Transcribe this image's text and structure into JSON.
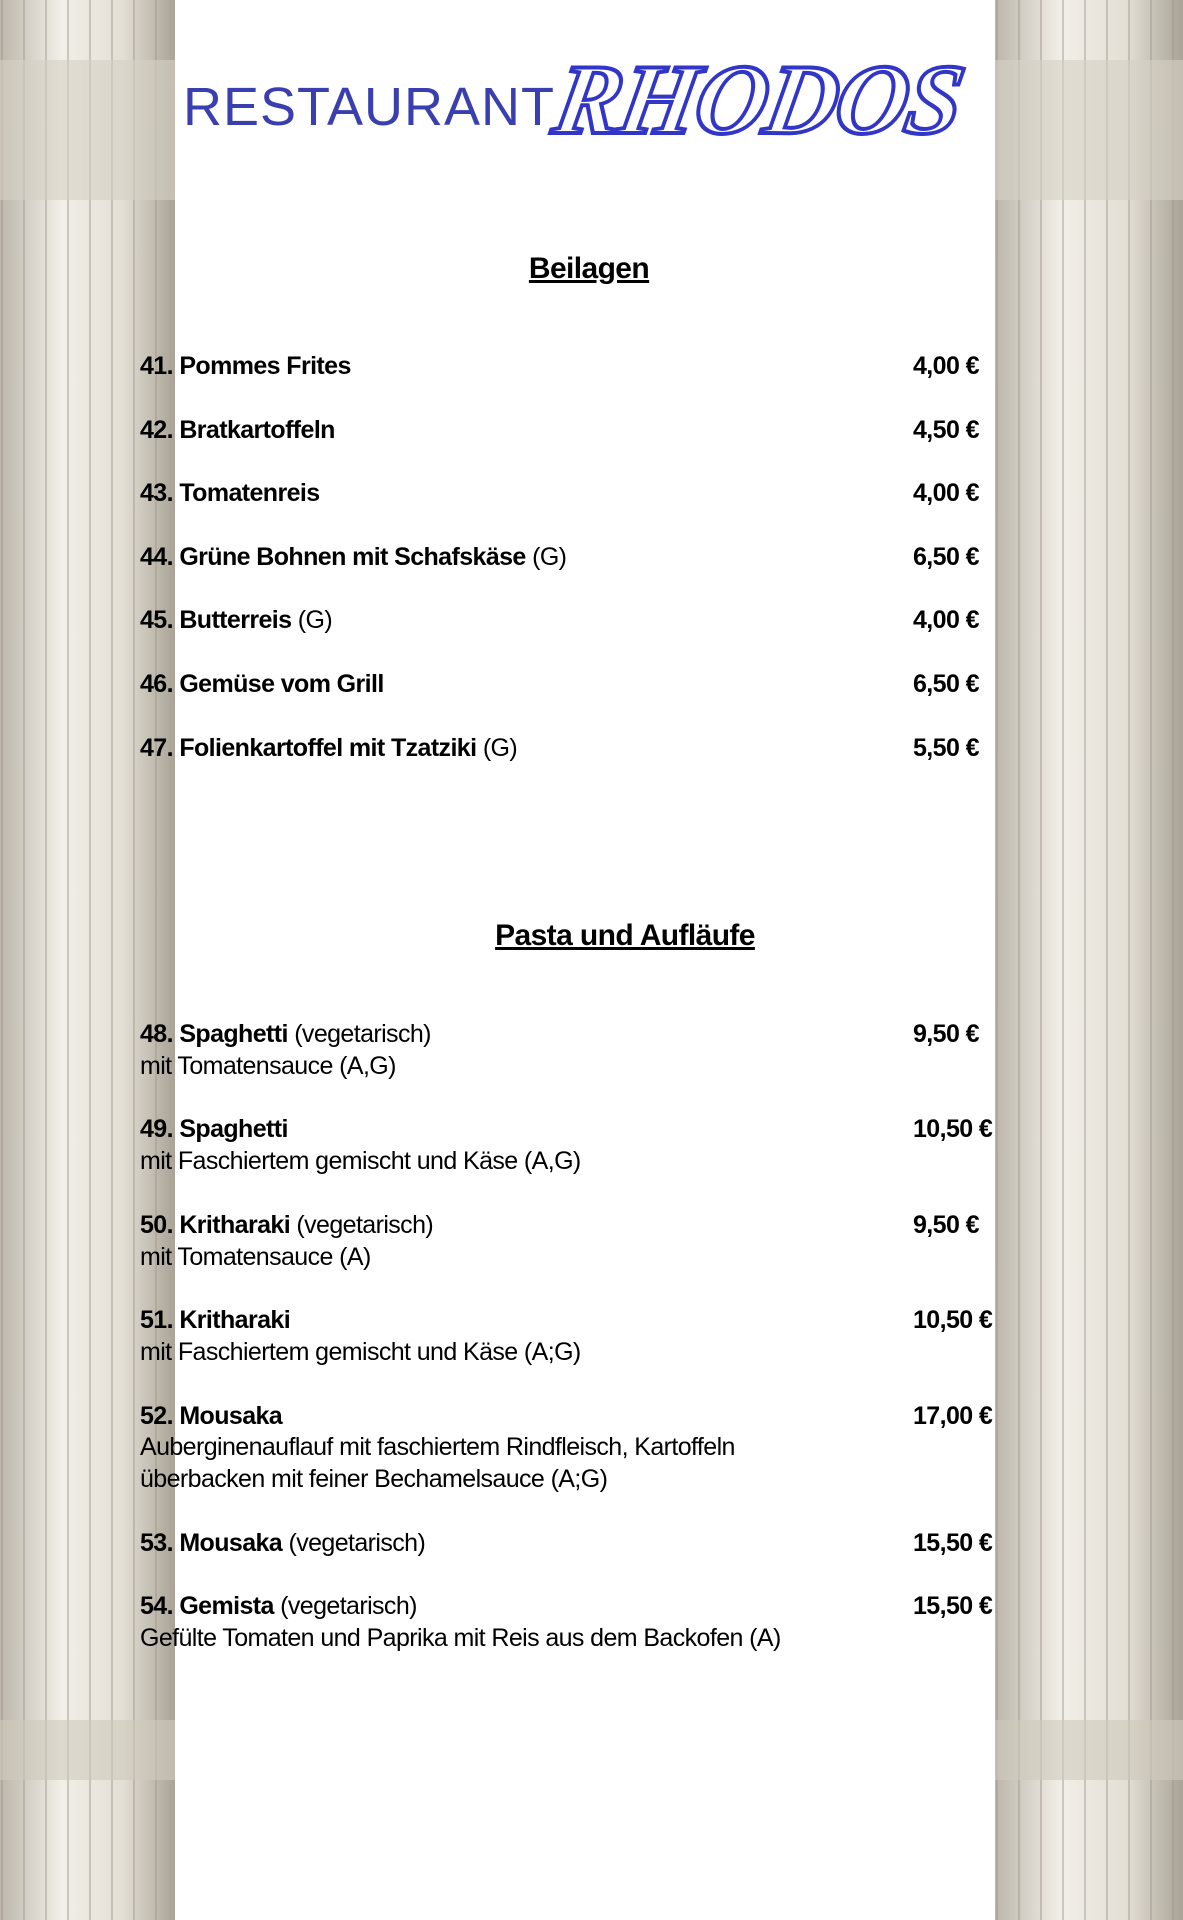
{
  "header": {
    "label": "RESTAURANT",
    "name": "RHODOS"
  },
  "sections": [
    {
      "title": "Beilagen",
      "items": [
        {
          "number": "41.",
          "name": "Pommes Frites",
          "price": "4,00 €"
        },
        {
          "number": "42.",
          "name": "Bratkartoffeln",
          "price": "4,50 €"
        },
        {
          "number": "43.",
          "name": "Tomatenreis",
          "price": "4,00 €"
        },
        {
          "number": "44.",
          "name": "Grüne Bohnen mit Schafskäse",
          "note": "(G)",
          "price": "6,50 €"
        },
        {
          "number": "45.",
          "name": "Butterreis",
          "note": "(G)",
          "price": "4,00 €"
        },
        {
          "number": "46.",
          "name": "Gemüse vom Grill",
          "price": "6,50 €"
        },
        {
          "number": "47.",
          "name": "Folienkartoffel mit Tzatziki",
          "note": "(G)",
          "price": "5,50 €"
        }
      ]
    },
    {
      "title": "Pasta und Aufläufe",
      "items": [
        {
          "number": "48.",
          "name": "Spaghetti",
          "note": "(vegetarisch)",
          "description": [
            "mit Tomatensauce (A,G)"
          ],
          "price": "9,50 €"
        },
        {
          "number": "49.",
          "name": "Spaghetti",
          "description": [
            "mit Faschiertem gemischt und Käse (A,G)"
          ],
          "price": "10,50 €"
        },
        {
          "number": "50.",
          "name": "Kritharaki",
          "note": "(vegetarisch)",
          "description": [
            "mit Tomatensauce (A)"
          ],
          "price": "9,50 €"
        },
        {
          "number": "51.",
          "name": "Kritharaki",
          "description": [
            "mit Faschiertem gemischt und Käse (A;G)"
          ],
          "price": "10,50 €"
        },
        {
          "number": "52.",
          "name": "Mousaka",
          "description": [
            "Auberginenauflauf mit faschiertem Rindfleisch, Kartoffeln",
            "überbacken mit feiner Bechamelsauce (A;G)"
          ],
          "price": "17,00 €"
        },
        {
          "number": "53.",
          "name": "Mousaka",
          "note": "(vegetarisch)",
          "price": "15,50 €"
        },
        {
          "number": "54.",
          "name": "Gemista",
          "note": "(vegetarisch)",
          "description": [
            "Gefülte Tomaten und Paprika mit Reis aus dem Backofen (A)"
          ],
          "price": "15,50 €"
        }
      ]
    }
  ]
}
